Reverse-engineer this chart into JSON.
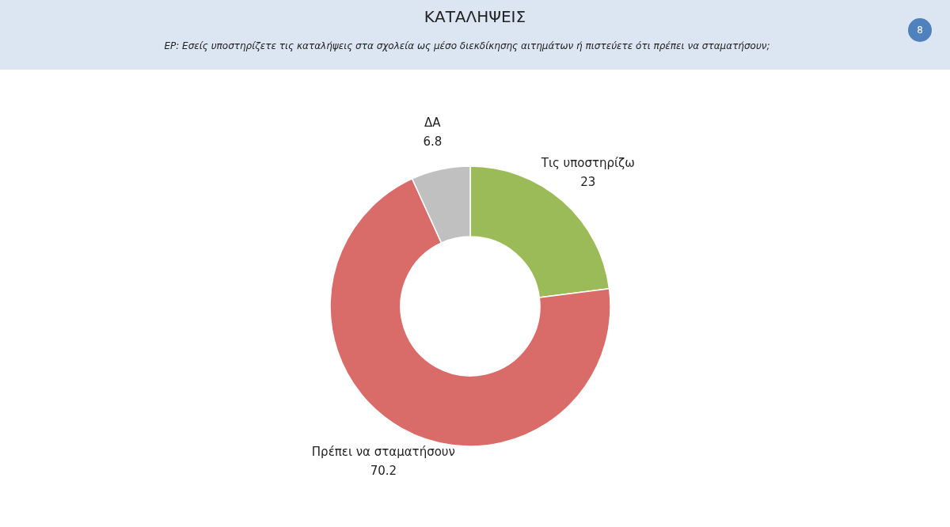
{
  "chart_data": {
    "type": "donut",
    "title": "ΚΑΤΑΛΗΨΕΙΣ",
    "subtitle": "ΕΡ:  Εσείς υποστηρίζετε τις καταλήψεις στα σχολεία ως μέσο διεκδίκησης αιτημάτων ή πιστεύετε ότι πρέπει να σταματήσουν;",
    "categories": [
      "Τις υποστηρίζω",
      "Πρέπει να σταματήσουν",
      "ΔΑ"
    ],
    "values": [
      23,
      70.2,
      6.8
    ],
    "colors": [
      "#9bbb59",
      "#d96b68",
      "#c0c0c0"
    ],
    "data_labels": true,
    "annotations": [
      "8"
    ]
  }
}
